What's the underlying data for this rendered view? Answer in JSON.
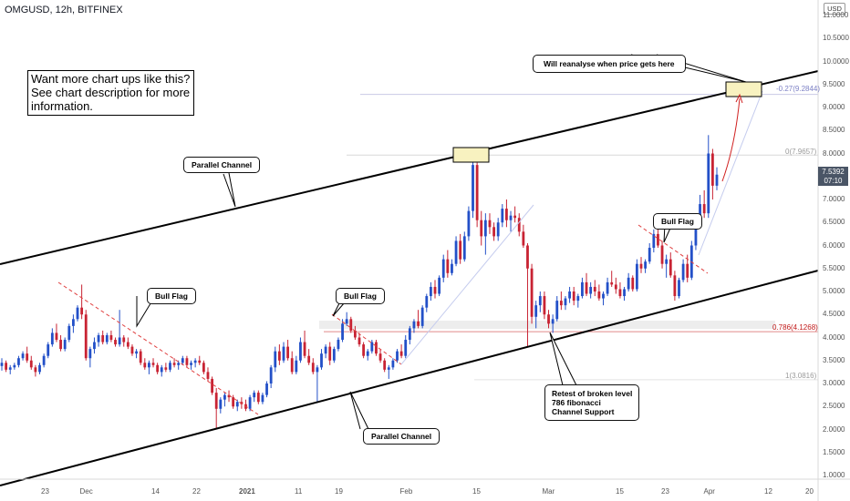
{
  "header": {
    "ticker": "OMGUSD, 12h, BITFINEX"
  },
  "promo_text": "Want more chart ups like this?\nSee chart description for more information.",
  "callouts": {
    "parallel_channel_upper": "Parallel Channel",
    "parallel_channel_lower": "Parallel Channel",
    "bull_flag_1": "Bull Flag",
    "bull_flag_2": "Bull Flag",
    "bull_flag_3": "Bull Flag",
    "reanalyse": "Will reanalyse when price gets here",
    "retest": "Retest of broken level\n786 fibonacci\nChannel Support"
  },
  "price_axis": {
    "currency": "USD",
    "last_price": "7.5392",
    "countdown": "07:10",
    "ticks": [
      "11.0000",
      "10.5000",
      "10.0000",
      "9.5000",
      "9.0000",
      "8.5000",
      "8.0000",
      "7.5000",
      "7.0000",
      "6.5000",
      "6.0000",
      "5.5000",
      "5.0000",
      "4.5000",
      "4.0000",
      "3.5000",
      "3.0000",
      "2.5000",
      "2.0000",
      "1.5000",
      "1.0000"
    ]
  },
  "fib_levels": {
    "ext": "-0.27(9.2844)",
    "zero": "0(7.9657)",
    "f786": "0.786(4.1268)",
    "one": "1(3.0816)"
  },
  "time_axis": [
    "23",
    "Dec",
    "14",
    "22",
    "2021",
    "11",
    "19",
    "Feb",
    "15",
    "Mar",
    "15",
    "23",
    "Apr",
    "12",
    "20"
  ],
  "colors": {
    "up": "#2350c8",
    "down": "#c82333",
    "channel": "#000000",
    "flag_line": "#e04040",
    "target_box": "#f8f2c0"
  },
  "chart_data": {
    "type": "candlestick",
    "symbol": "OMGUSD",
    "interval": "12h",
    "exchange": "BITFINEX",
    "ylim": [
      0.85,
      11.6
    ],
    "ohlc": [
      [
        3.38,
        3.55,
        3.28,
        3.45
      ],
      [
        3.45,
        3.5,
        3.25,
        3.3
      ],
      [
        3.3,
        3.4,
        3.2,
        3.35
      ],
      [
        3.35,
        3.45,
        3.3,
        3.4
      ],
      [
        3.4,
        3.6,
        3.35,
        3.55
      ],
      [
        3.55,
        3.7,
        3.5,
        3.65
      ],
      [
        3.65,
        3.8,
        3.45,
        3.5
      ],
      [
        3.5,
        3.6,
        3.3,
        3.35
      ],
      [
        3.35,
        3.4,
        3.15,
        3.25
      ],
      [
        3.25,
        3.45,
        3.2,
        3.4
      ],
      [
        3.4,
        3.65,
        3.35,
        3.6
      ],
      [
        3.6,
        3.9,
        3.55,
        3.85
      ],
      [
        3.85,
        4.2,
        3.8,
        4.1
      ],
      [
        4.1,
        4.3,
        3.9,
        3.95
      ],
      [
        3.95,
        4.05,
        3.7,
        3.75
      ],
      [
        3.75,
        4.0,
        3.7,
        3.95
      ],
      [
        3.95,
        4.3,
        3.9,
        4.25
      ],
      [
        4.25,
        4.5,
        4.1,
        4.4
      ],
      [
        4.4,
        4.7,
        4.35,
        4.65
      ],
      [
        4.65,
        5.15,
        4.4,
        4.5
      ],
      [
        4.5,
        4.6,
        3.5,
        3.55
      ],
      [
        3.55,
        3.8,
        3.35,
        3.75
      ],
      [
        3.75,
        4.0,
        3.65,
        3.9
      ],
      [
        3.9,
        4.1,
        3.8,
        4.05
      ],
      [
        4.05,
        4.15,
        3.85,
        3.9
      ],
      [
        3.9,
        4.1,
        3.85,
        4.05
      ],
      [
        4.05,
        4.15,
        3.9,
        3.95
      ],
      [
        3.95,
        4.0,
        3.8,
        3.85
      ],
      [
        3.85,
        4.6,
        3.8,
        4.0
      ],
      [
        4.0,
        4.05,
        3.8,
        3.9
      ],
      [
        3.9,
        4.0,
        3.75,
        3.8
      ],
      [
        3.8,
        3.85,
        3.6,
        3.65
      ],
      [
        3.65,
        3.75,
        3.55,
        3.7
      ],
      [
        3.7,
        3.75,
        3.4,
        3.45
      ],
      [
        3.45,
        3.55,
        3.3,
        3.35
      ],
      [
        3.35,
        3.5,
        3.2,
        3.45
      ],
      [
        3.45,
        3.55,
        3.35,
        3.4
      ],
      [
        3.4,
        3.45,
        3.2,
        3.25
      ],
      [
        3.25,
        3.4,
        3.15,
        3.35
      ],
      [
        3.35,
        3.45,
        3.25,
        3.3
      ],
      [
        3.3,
        3.5,
        3.25,
        3.45
      ],
      [
        3.45,
        3.55,
        3.35,
        3.4
      ],
      [
        3.4,
        3.5,
        3.3,
        3.45
      ],
      [
        3.45,
        3.6,
        3.4,
        3.55
      ],
      [
        3.55,
        3.6,
        3.35,
        3.4
      ],
      [
        3.4,
        3.5,
        3.3,
        3.45
      ],
      [
        3.45,
        3.55,
        3.35,
        3.5
      ],
      [
        3.5,
        3.6,
        3.4,
        3.45
      ],
      [
        3.45,
        3.5,
        3.2,
        3.25
      ],
      [
        3.25,
        3.35,
        3.05,
        3.1
      ],
      [
        3.1,
        3.15,
        2.75,
        2.8
      ],
      [
        2.8,
        2.9,
        2.0,
        2.45
      ],
      [
        2.45,
        2.7,
        2.35,
        2.65
      ],
      [
        2.65,
        2.8,
        2.5,
        2.75
      ],
      [
        2.75,
        2.85,
        2.6,
        2.7
      ],
      [
        2.7,
        2.75,
        2.45,
        2.5
      ],
      [
        2.5,
        2.65,
        2.4,
        2.6
      ],
      [
        2.6,
        2.7,
        2.45,
        2.55
      ],
      [
        2.55,
        2.65,
        2.4,
        2.45
      ],
      [
        2.45,
        2.75,
        2.4,
        2.7
      ],
      [
        2.7,
        2.85,
        2.6,
        2.8
      ],
      [
        2.8,
        2.85,
        2.55,
        2.6
      ],
      [
        2.6,
        2.8,
        2.55,
        2.75
      ],
      [
        2.75,
        3.05,
        2.7,
        3.0
      ],
      [
        3.0,
        3.4,
        2.9,
        3.35
      ],
      [
        3.35,
        3.8,
        3.25,
        3.7
      ],
      [
        3.7,
        3.85,
        3.4,
        3.5
      ],
      [
        3.5,
        3.9,
        3.45,
        3.8
      ],
      [
        3.8,
        3.95,
        3.5,
        3.55
      ],
      [
        3.55,
        3.7,
        3.2,
        3.25
      ],
      [
        3.25,
        3.6,
        3.2,
        3.5
      ],
      [
        3.5,
        4.0,
        3.45,
        3.9
      ],
      [
        3.9,
        4.15,
        3.55,
        3.6
      ],
      [
        3.6,
        3.75,
        3.4,
        3.45
      ],
      [
        3.45,
        3.55,
        3.2,
        3.25
      ],
      [
        3.25,
        3.4,
        2.6,
        3.35
      ],
      [
        3.35,
        3.75,
        3.3,
        3.65
      ],
      [
        3.65,
        3.85,
        3.55,
        3.8
      ],
      [
        3.8,
        3.9,
        3.4,
        3.5
      ],
      [
        3.5,
        3.8,
        3.45,
        3.75
      ],
      [
        3.75,
        4.0,
        3.7,
        3.95
      ],
      [
        3.95,
        4.4,
        3.9,
        4.3
      ],
      [
        4.3,
        4.55,
        4.25,
        4.4
      ],
      [
        4.4,
        4.45,
        4.1,
        4.15
      ],
      [
        4.15,
        4.25,
        3.95,
        4.0
      ],
      [
        4.0,
        4.1,
        3.8,
        3.85
      ],
      [
        3.85,
        3.9,
        3.55,
        3.6
      ],
      [
        3.6,
        3.75,
        3.5,
        3.7
      ],
      [
        3.7,
        3.95,
        3.65,
        3.9
      ],
      [
        3.9,
        3.95,
        3.6,
        3.65
      ],
      [
        3.65,
        3.75,
        3.45,
        3.5
      ],
      [
        3.5,
        3.55,
        3.25,
        3.3
      ],
      [
        3.3,
        3.4,
        3.1,
        3.35
      ],
      [
        3.35,
        3.55,
        3.3,
        3.5
      ],
      [
        3.5,
        3.75,
        3.45,
        3.7
      ],
      [
        3.7,
        3.85,
        3.55,
        3.6
      ],
      [
        3.6,
        4.05,
        3.55,
        3.95
      ],
      [
        3.95,
        4.25,
        3.85,
        4.2
      ],
      [
        4.2,
        4.4,
        4.1,
        4.35
      ],
      [
        4.35,
        4.6,
        4.2,
        4.25
      ],
      [
        4.25,
        4.7,
        4.2,
        4.65
      ],
      [
        4.65,
        4.95,
        4.55,
        4.9
      ],
      [
        4.9,
        5.2,
        4.8,
        5.1
      ],
      [
        5.1,
        5.25,
        4.85,
        4.95
      ],
      [
        4.95,
        5.35,
        4.9,
        5.3
      ],
      [
        5.3,
        5.8,
        5.2,
        5.7
      ],
      [
        5.7,
        5.9,
        5.3,
        5.4
      ],
      [
        5.4,
        5.7,
        5.35,
        5.6
      ],
      [
        5.6,
        6.2,
        5.55,
        6.1
      ],
      [
        6.1,
        6.25,
        5.6,
        5.7
      ],
      [
        5.7,
        6.3,
        5.65,
        6.2
      ],
      [
        6.2,
        6.85,
        6.1,
        6.75
      ],
      [
        6.75,
        7.95,
        6.6,
        7.75
      ],
      [
        7.75,
        7.8,
        6.4,
        6.55
      ],
      [
        6.55,
        6.75,
        6.0,
        6.2
      ],
      [
        6.2,
        6.7,
        5.8,
        6.55
      ],
      [
        6.55,
        6.7,
        6.25,
        6.4
      ],
      [
        6.4,
        6.5,
        6.1,
        6.2
      ],
      [
        6.2,
        6.6,
        6.1,
        6.5
      ],
      [
        6.5,
        6.9,
        6.4,
        6.8
      ],
      [
        6.8,
        7.0,
        6.4,
        6.55
      ],
      [
        6.55,
        6.75,
        6.3,
        6.65
      ],
      [
        6.65,
        6.85,
        6.5,
        6.6
      ],
      [
        6.6,
        6.7,
        6.2,
        6.3
      ],
      [
        6.3,
        6.45,
        5.95,
        6.0
      ],
      [
        6.0,
        6.05,
        3.8,
        5.5
      ],
      [
        5.5,
        5.6,
        4.3,
        4.45
      ],
      [
        4.45,
        4.8,
        4.2,
        4.7
      ],
      [
        4.7,
        5.0,
        4.55,
        4.9
      ],
      [
        4.9,
        5.0,
        4.4,
        4.5
      ],
      [
        4.5,
        4.6,
        4.2,
        4.3
      ],
      [
        4.3,
        4.5,
        4.1,
        4.4
      ],
      [
        4.4,
        4.9,
        4.35,
        4.8
      ],
      [
        4.8,
        5.0,
        4.6,
        4.7
      ],
      [
        4.7,
        4.9,
        4.6,
        4.85
      ],
      [
        4.85,
        5.1,
        4.75,
        5.0
      ],
      [
        5.0,
        5.1,
        4.7,
        4.8
      ],
      [
        4.8,
        4.95,
        4.65,
        4.9
      ],
      [
        4.9,
        5.3,
        4.85,
        5.2
      ],
      [
        5.2,
        5.4,
        4.9,
        4.95
      ],
      [
        4.95,
        5.2,
        4.85,
        5.1
      ],
      [
        5.1,
        5.25,
        4.9,
        5.0
      ],
      [
        5.0,
        5.15,
        4.8,
        4.85
      ],
      [
        4.85,
        5.0,
        4.7,
        4.95
      ],
      [
        4.95,
        5.3,
        4.9,
        5.2
      ],
      [
        5.2,
        5.45,
        5.1,
        5.15
      ],
      [
        5.15,
        5.3,
        4.95,
        5.05
      ],
      [
        5.05,
        5.2,
        4.85,
        4.9
      ],
      [
        4.9,
        5.1,
        4.8,
        5.05
      ],
      [
        5.05,
        5.4,
        5.0,
        5.3
      ],
      [
        5.3,
        5.35,
        5.0,
        5.05
      ],
      [
        5.05,
        5.7,
        5.0,
        5.6
      ],
      [
        5.6,
        5.75,
        5.4,
        5.5
      ],
      [
        5.5,
        5.7,
        5.4,
        5.65
      ],
      [
        5.65,
        6.05,
        5.6,
        5.95
      ],
      [
        5.95,
        6.35,
        5.85,
        6.25
      ],
      [
        6.25,
        6.4,
        5.95,
        6.0
      ],
      [
        6.0,
        6.1,
        5.5,
        5.6
      ],
      [
        5.6,
        5.8,
        5.3,
        5.7
      ],
      [
        5.7,
        5.85,
        5.3,
        5.35
      ],
      [
        5.35,
        5.45,
        4.8,
        4.9
      ],
      [
        4.9,
        5.3,
        4.85,
        5.25
      ],
      [
        5.25,
        5.7,
        5.2,
        5.6
      ],
      [
        5.6,
        5.8,
        5.2,
        5.3
      ],
      [
        5.3,
        6.1,
        5.25,
        6.0
      ],
      [
        6.0,
        6.6,
        5.9,
        6.5
      ],
      [
        6.5,
        7.1,
        6.4,
        6.9
      ],
      [
        6.9,
        7.2,
        6.6,
        6.7
      ],
      [
        6.7,
        8.4,
        6.6,
        8.0
      ],
      [
        8.0,
        8.1,
        7.0,
        7.3
      ],
      [
        7.3,
        7.7,
        7.2,
        7.54
      ]
    ],
    "overlays": {
      "channel_upper": {
        "from": [
          "Nov 15",
          5.6
        ],
        "to": [
          "Apr 20",
          9.8
        ]
      },
      "channel_lower": {
        "from": [
          "Nov 15",
          0.95
        ],
        "to": [
          "Apr 20",
          5.45
        ]
      },
      "fib_levels": [
        9.2844,
        7.9657,
        4.1268,
        3.0816
      ]
    }
  }
}
